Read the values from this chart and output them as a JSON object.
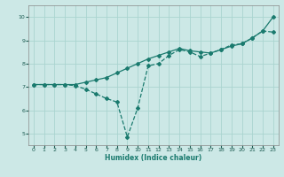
{
  "title": "",
  "xlabel": "Humidex (Indice chaleur)",
  "ylabel": "",
  "bg_color": "#cce8e6",
  "line_color": "#1a7a6e",
  "marker_color": "#1a7a6e",
  "grid_color": "#aad4d0",
  "xlim": [
    -0.5,
    23.5
  ],
  "ylim": [
    4.5,
    10.5
  ],
  "xticks": [
    0,
    1,
    2,
    3,
    4,
    5,
    6,
    7,
    8,
    9,
    10,
    11,
    12,
    13,
    14,
    15,
    16,
    17,
    18,
    19,
    20,
    21,
    22,
    23
  ],
  "yticks": [
    5,
    6,
    7,
    8,
    9,
    10
  ],
  "series1_x": [
    0,
    1,
    2,
    3,
    4,
    5,
    6,
    7,
    8,
    9,
    10,
    11,
    12,
    13,
    14,
    15,
    16,
    17,
    18,
    19,
    20,
    21,
    22,
    23
  ],
  "series1_y": [
    7.1,
    7.1,
    7.1,
    7.1,
    7.1,
    7.2,
    7.3,
    7.4,
    7.6,
    7.8,
    8.0,
    8.2,
    8.35,
    8.5,
    8.65,
    8.55,
    8.5,
    8.45,
    8.6,
    8.75,
    8.85,
    9.1,
    9.4,
    10.0
  ],
  "series2_x": [
    0,
    1,
    2,
    3,
    4,
    5,
    6,
    7,
    8,
    9,
    10,
    11,
    12,
    13,
    14,
    15,
    16,
    17,
    18,
    19,
    20,
    21,
    22,
    23
  ],
  "series2_y": [
    7.1,
    7.1,
    7.1,
    7.1,
    7.05,
    6.9,
    6.7,
    6.5,
    6.35,
    4.85,
    6.1,
    7.9,
    8.0,
    8.35,
    8.6,
    8.5,
    8.3,
    8.45,
    8.6,
    8.8,
    8.85,
    9.1,
    9.4,
    9.35
  ]
}
